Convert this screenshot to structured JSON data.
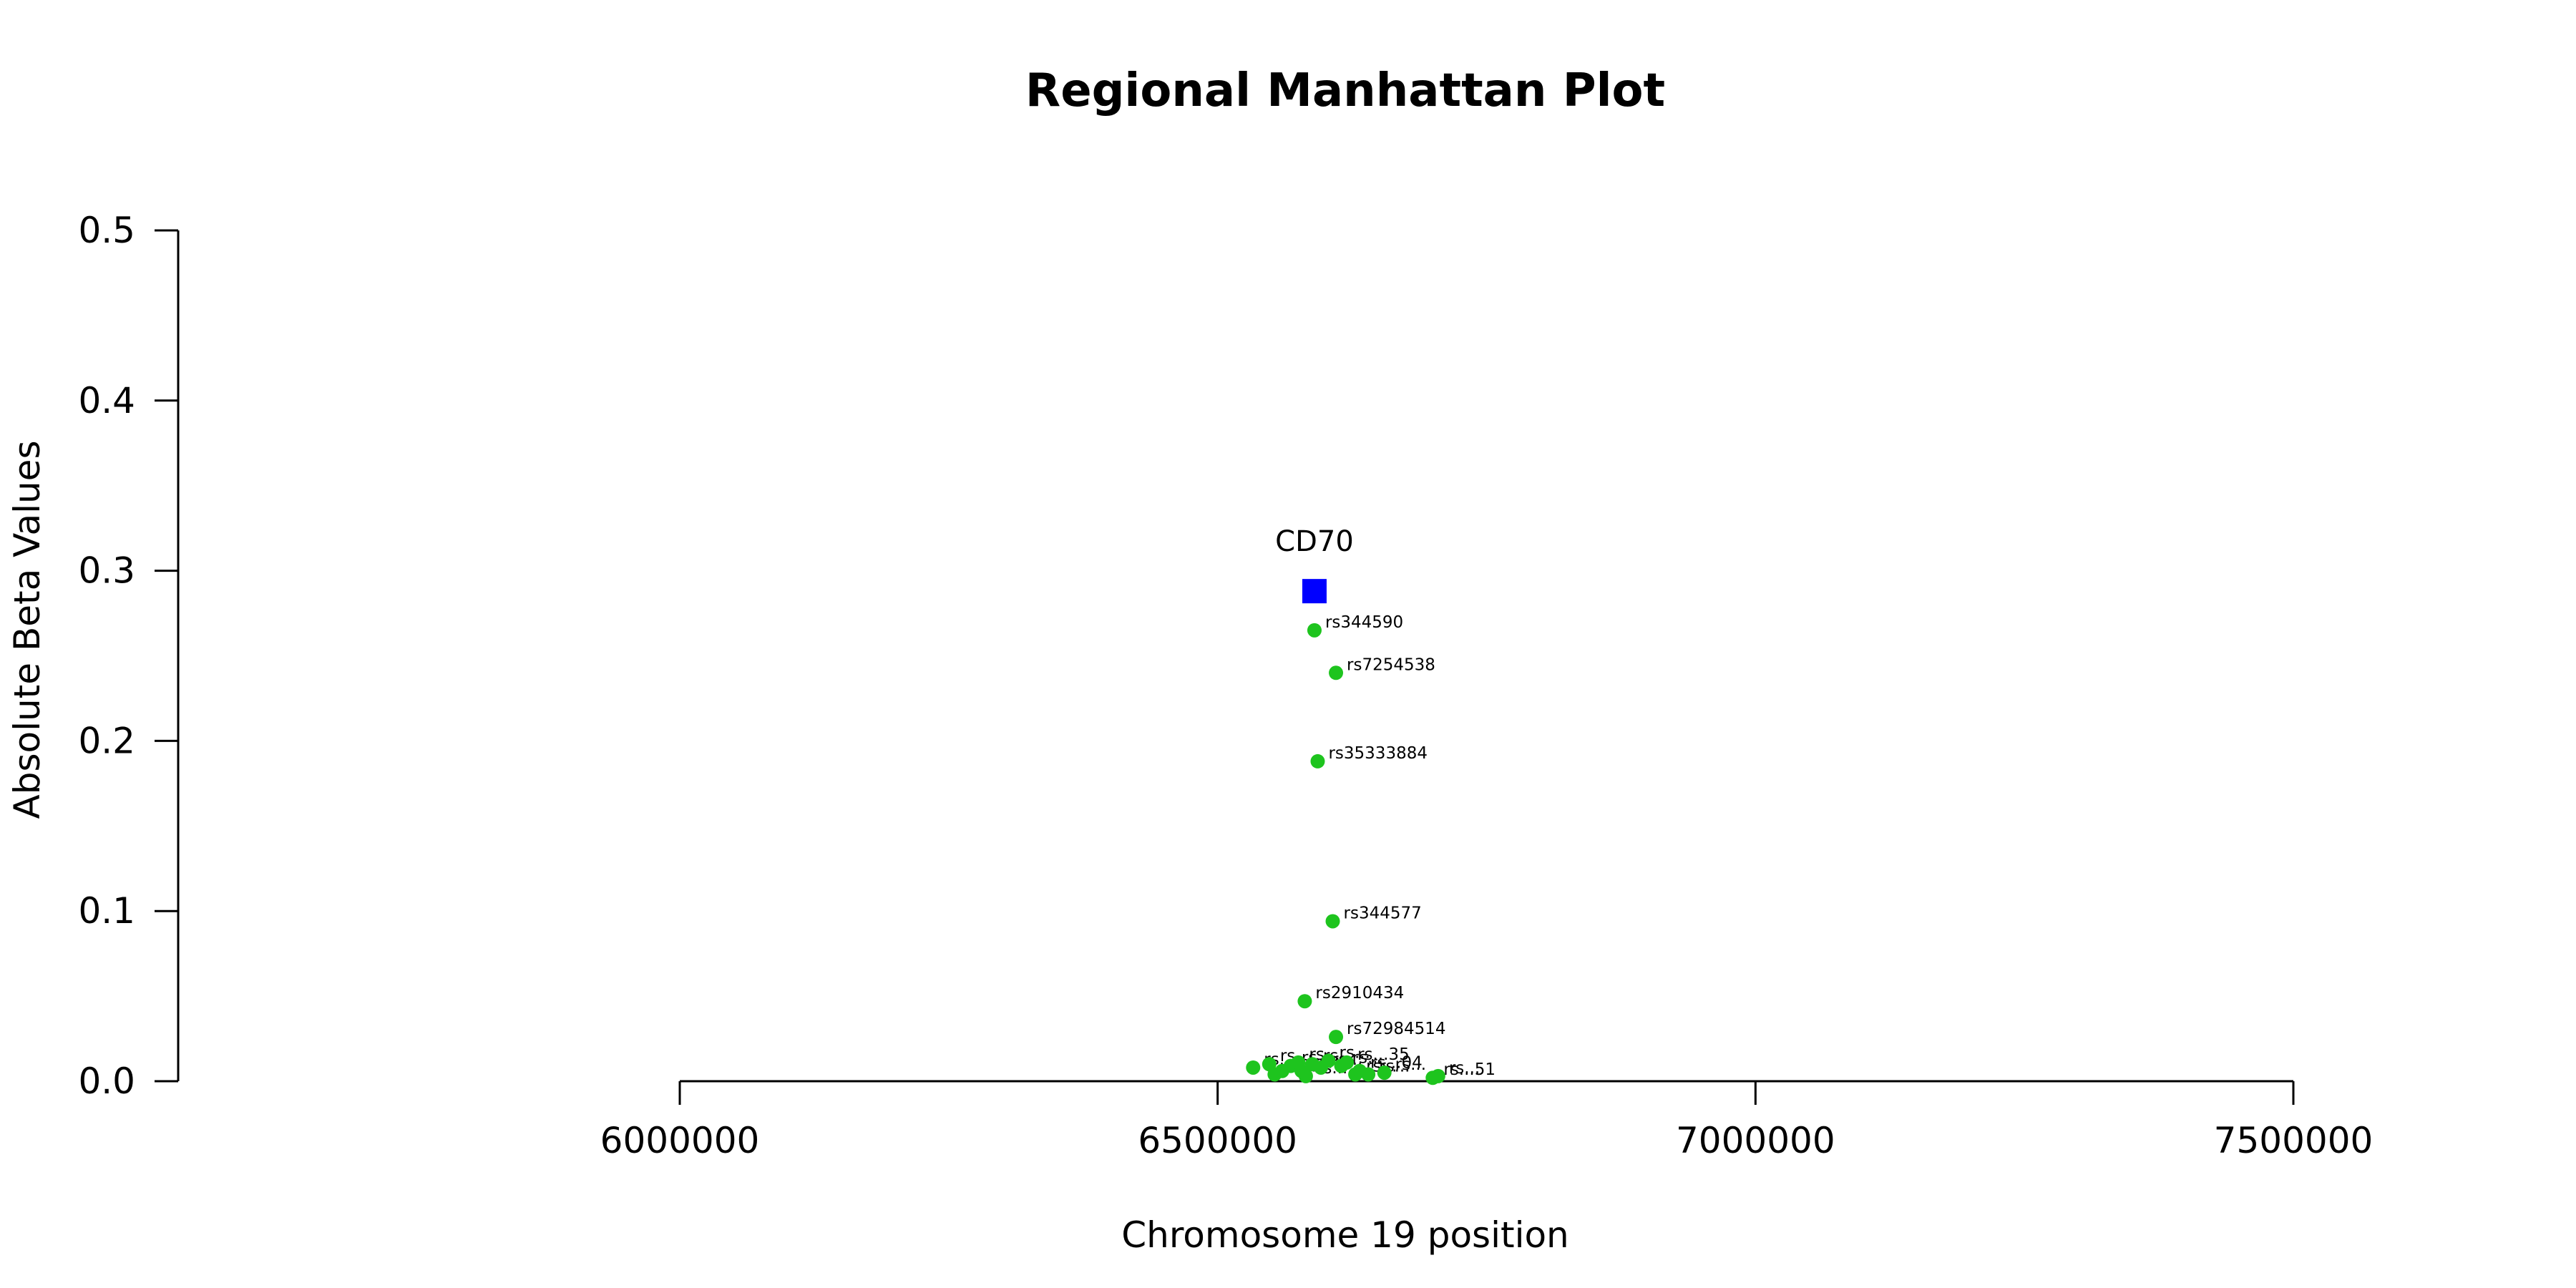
{
  "chart_data": {
    "type": "scatter",
    "title": "Regional Manhattan Plot",
    "xlabel": "Chromosome 19 position",
    "ylabel": "Absolute Beta Values",
    "xlim": [
      6000000,
      7500000
    ],
    "ylim": [
      0,
      0.5
    ],
    "x_ticks": [
      "6000000",
      "6500000",
      "7000000",
      "7500000"
    ],
    "y_ticks": [
      "0.0",
      "0.1",
      "0.2",
      "0.3",
      "0.4",
      "0.5"
    ],
    "grid": false,
    "colors": {
      "snp": "#1ec41e",
      "gene": "#0000ff",
      "axis": "#000000"
    },
    "gene": {
      "name": "CD70",
      "x": 6590000,
      "y": 0.288
    },
    "series": [
      {
        "points": [
          {
            "label": "rs344590",
            "x": 6590000,
            "y": 0.265
          },
          {
            "label": "rs7254538",
            "x": 6610000,
            "y": 0.24
          },
          {
            "label": "rs35333884",
            "x": 6593000,
            "y": 0.188
          },
          {
            "label": "rs344577",
            "x": 6607000,
            "y": 0.094
          },
          {
            "label": "rs2910434",
            "x": 6581000,
            "y": 0.047
          },
          {
            "label": "rs72984514",
            "x": 6610000,
            "y": 0.026
          },
          {
            "label": "rs...",
            "x": 6533000,
            "y": 0.008
          },
          {
            "label": "rs...",
            "x": 6548000,
            "y": 0.01
          },
          {
            "label": "rs...",
            "x": 6560000,
            "y": 0.006
          },
          {
            "label": "rs...",
            "x": 6553000,
            "y": 0.004
          },
          {
            "label": "rs...",
            "x": 6568000,
            "y": 0.009
          },
          {
            "label": "rs...",
            "x": 6575000,
            "y": 0.011
          },
          {
            "label": "rs...",
            "x": 6578000,
            "y": 0.006
          },
          {
            "label": "rs...",
            "x": 6582000,
            "y": 0.003
          },
          {
            "label": "rs...",
            "x": 6588000,
            "y": 0.01
          },
          {
            "label": "rs...",
            "x": 6596000,
            "y": 0.008
          },
          {
            "label": "rs...",
            "x": 6603000,
            "y": 0.012
          },
          {
            "label": "rs...",
            "x": 6615000,
            "y": 0.009
          },
          {
            "label": "rs...35",
            "x": 6620000,
            "y": 0.011
          },
          {
            "label": "rs...",
            "x": 6628000,
            "y": 0.004
          },
          {
            "label": "rs...04",
            "x": 6632000,
            "y": 0.006
          },
          {
            "label": "rs...",
            "x": 6640000,
            "y": 0.004
          },
          {
            "label": "rs...",
            "x": 6655000,
            "y": 0.005
          },
          {
            "label": "rs...51",
            "x": 6700000,
            "y": 0.002
          },
          {
            "label": "rs...",
            "x": 6705000,
            "y": 0.003
          }
        ]
      }
    ]
  }
}
